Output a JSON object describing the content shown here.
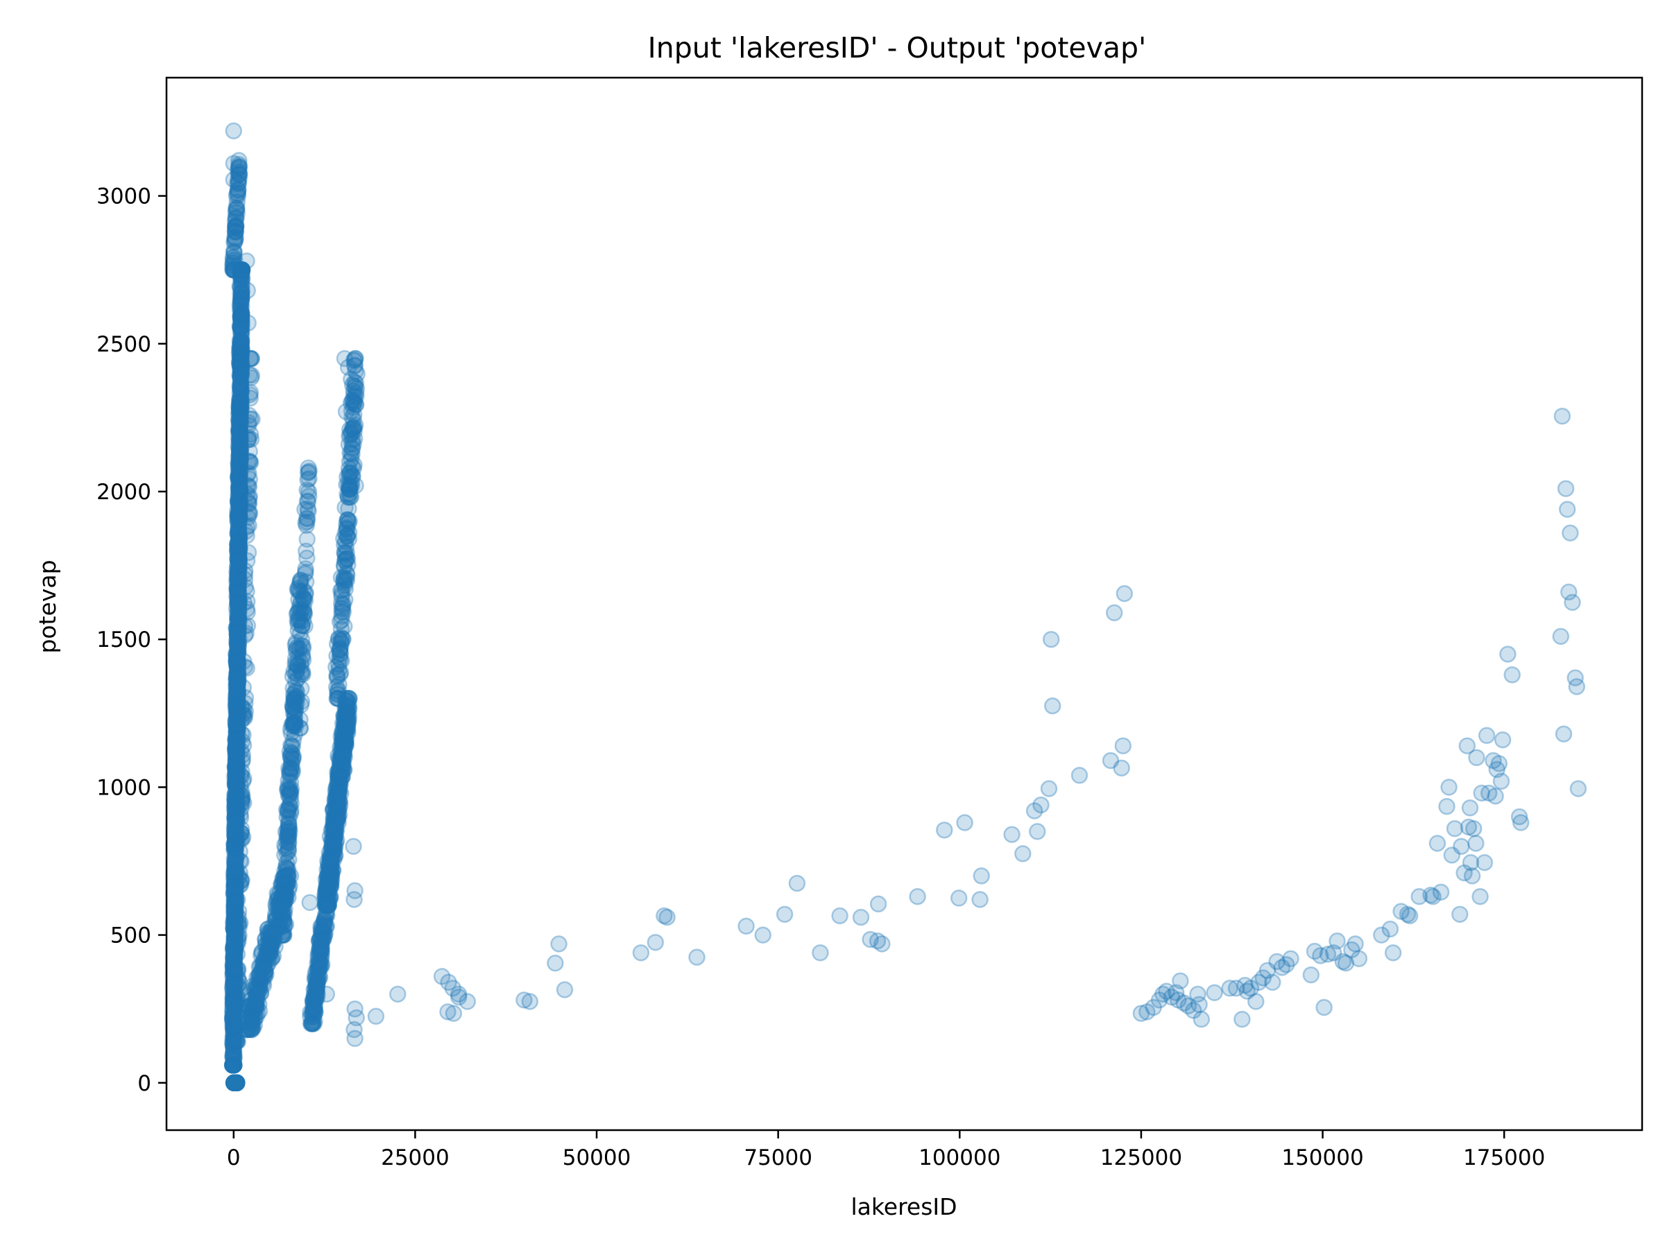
{
  "chart_data": {
    "type": "scatter",
    "title": "Input 'lakeresID' - Output 'potevap'",
    "xlabel": "lakeresID",
    "ylabel": "potevap",
    "xlim": [
      -9250,
      194000
    ],
    "ylim": [
      -160,
      3400
    ],
    "xticks": [
      0,
      25000,
      50000,
      75000,
      100000,
      125000,
      150000,
      175000
    ],
    "yticks": [
      0,
      500,
      1000,
      1500,
      2000,
      2500,
      3000
    ],
    "grid": false,
    "legend": "none",
    "marker_color": "#1f77b4",
    "marker_alpha": 0.22,
    "series": [
      {
        "clusters": [
          {
            "x": [
              0,
              500
            ],
            "y": [
              0,
              0
            ],
            "n": 24,
            "alpha": 0.9
          },
          {
            "x": [
              -200,
              1200
            ],
            "y": [
              60,
              2750
            ],
            "n": 1400
          },
          {
            "x": [
              -150,
              900
            ],
            "y": [
              2750,
              3120
            ],
            "n": 70
          },
          {
            "x": [
              200,
              2600
            ],
            "y": [
              140,
              2450
            ],
            "n": 160
          },
          {
            "x": [
              1500,
              8000
            ],
            "y": [
              180,
              700
            ],
            "n": 260
          },
          {
            "x": [
              6500,
              9500
            ],
            "y": [
              500,
              1700
            ],
            "n": 220
          },
          {
            "x": [
              9000,
              10500
            ],
            "y": [
              1200,
              2080
            ],
            "n": 60
          },
          {
            "x": [
              10500,
              13500
            ],
            "y": [
              200,
              700
            ],
            "n": 180
          },
          {
            "x": [
              12500,
              16000
            ],
            "y": [
              600,
              1300
            ],
            "n": 420
          },
          {
            "x": [
              14000,
              17200
            ],
            "y": [
              1300,
              2450
            ],
            "n": 180
          }
        ],
        "points": [
          [
            0,
            3220
          ],
          [
            0,
            3055
          ],
          [
            0,
            3110
          ],
          [
            1800,
            2780
          ],
          [
            1900,
            2680
          ],
          [
            2000,
            2570
          ],
          [
            10300,
            2065
          ],
          [
            10200,
            2040
          ],
          [
            9800,
            1940
          ],
          [
            15300,
            2450
          ],
          [
            15800,
            2420
          ],
          [
            16200,
            2380
          ],
          [
            15500,
            2270
          ],
          [
            16000,
            2210
          ],
          [
            16500,
            2160
          ],
          [
            16600,
            2090
          ],
          [
            16400,
            2050
          ],
          [
            16800,
            2020
          ],
          [
            10500,
            610
          ],
          [
            11300,
            310
          ],
          [
            12800,
            300
          ],
          [
            16500,
            800
          ],
          [
            16700,
            650
          ],
          [
            16600,
            620
          ],
          [
            16700,
            250
          ],
          [
            16900,
            220
          ],
          [
            16600,
            180
          ],
          [
            16700,
            150
          ],
          [
            19600,
            225
          ],
          [
            22600,
            300
          ],
          [
            28700,
            360
          ],
          [
            29600,
            340
          ],
          [
            30200,
            320
          ],
          [
            31000,
            300
          ],
          [
            29500,
            240
          ],
          [
            30300,
            235
          ],
          [
            31000,
            290
          ],
          [
            32200,
            275
          ],
          [
            40000,
            280
          ],
          [
            40800,
            275
          ],
          [
            44300,
            405
          ],
          [
            44800,
            470
          ],
          [
            45600,
            315
          ],
          [
            56100,
            440
          ],
          [
            58100,
            475
          ],
          [
            59300,
            565
          ],
          [
            59700,
            560
          ],
          [
            63800,
            425
          ],
          [
            70600,
            530
          ],
          [
            72900,
            500
          ],
          [
            75900,
            570
          ],
          [
            77600,
            675
          ],
          [
            80800,
            440
          ],
          [
            83500,
            565
          ],
          [
            86400,
            560
          ],
          [
            87700,
            485
          ],
          [
            88700,
            480
          ],
          [
            88800,
            605
          ],
          [
            89300,
            470
          ],
          [
            94200,
            630
          ],
          [
            97900,
            855
          ],
          [
            99900,
            625
          ],
          [
            100700,
            880
          ],
          [
            102800,
            620
          ],
          [
            103000,
            700
          ],
          [
            107200,
            840
          ],
          [
            108700,
            775
          ],
          [
            110300,
            920
          ],
          [
            110700,
            850
          ],
          [
            111200,
            940
          ],
          [
            112300,
            995
          ],
          [
            112600,
            1500
          ],
          [
            112800,
            1275
          ],
          [
            116500,
            1040
          ],
          [
            120800,
            1090
          ],
          [
            121300,
            1590
          ],
          [
            122300,
            1065
          ],
          [
            122500,
            1140
          ],
          [
            122700,
            1655
          ],
          [
            125000,
            235
          ],
          [
            125800,
            240
          ],
          [
            126700,
            255
          ],
          [
            127500,
            280
          ],
          [
            128000,
            300
          ],
          [
            128500,
            310
          ],
          [
            129200,
            290
          ],
          [
            129800,
            305
          ],
          [
            130100,
            280
          ],
          [
            130400,
            345
          ],
          [
            130900,
            270
          ],
          [
            131500,
            260
          ],
          [
            132200,
            245
          ],
          [
            132800,
            300
          ],
          [
            133000,
            265
          ],
          [
            133300,
            215
          ],
          [
            135100,
            305
          ],
          [
            137200,
            320
          ],
          [
            138100,
            320
          ],
          [
            138900,
            215
          ],
          [
            139300,
            330
          ],
          [
            139600,
            310
          ],
          [
            140100,
            320
          ],
          [
            140800,
            275
          ],
          [
            141200,
            340
          ],
          [
            141800,
            355
          ],
          [
            142400,
            380
          ],
          [
            143100,
            340
          ],
          [
            143700,
            410
          ],
          [
            144400,
            390
          ],
          [
            145000,
            400
          ],
          [
            145600,
            420
          ],
          [
            148400,
            365
          ],
          [
            148900,
            445
          ],
          [
            149700,
            430
          ],
          [
            150200,
            255
          ],
          [
            150700,
            435
          ],
          [
            151500,
            440
          ],
          [
            152000,
            480
          ],
          [
            152800,
            410
          ],
          [
            153200,
            405
          ],
          [
            154000,
            450
          ],
          [
            154500,
            470
          ],
          [
            155000,
            420
          ],
          [
            158100,
            500
          ],
          [
            159300,
            520
          ],
          [
            159700,
            440
          ],
          [
            160800,
            580
          ],
          [
            161700,
            570
          ],
          [
            162000,
            565
          ],
          [
            163300,
            630
          ],
          [
            164900,
            635
          ],
          [
            165200,
            630
          ],
          [
            165800,
            810
          ],
          [
            166300,
            645
          ],
          [
            167100,
            935
          ],
          [
            167400,
            1000
          ],
          [
            167800,
            770
          ],
          [
            168200,
            860
          ],
          [
            168900,
            570
          ],
          [
            169100,
            800
          ],
          [
            169500,
            710
          ],
          [
            169900,
            1140
          ],
          [
            170100,
            865
          ],
          [
            170300,
            930
          ],
          [
            170400,
            745
          ],
          [
            170600,
            700
          ],
          [
            170800,
            860
          ],
          [
            171100,
            810
          ],
          [
            171200,
            1100
          ],
          [
            171700,
            630
          ],
          [
            171900,
            980
          ],
          [
            172300,
            745
          ],
          [
            172600,
            1175
          ],
          [
            172900,
            980
          ],
          [
            173500,
            1090
          ],
          [
            173800,
            970
          ],
          [
            174000,
            1060
          ],
          [
            174300,
            1080
          ],
          [
            174600,
            1020
          ],
          [
            174800,
            1160
          ],
          [
            175500,
            1450
          ],
          [
            176100,
            1380
          ],
          [
            177100,
            900
          ],
          [
            177300,
            880
          ],
          [
            182800,
            1510
          ],
          [
            183000,
            2255
          ],
          [
            183200,
            1180
          ],
          [
            183500,
            2010
          ],
          [
            183700,
            1940
          ],
          [
            183900,
            1660
          ],
          [
            184100,
            1860
          ],
          [
            184400,
            1625
          ],
          [
            184800,
            1370
          ],
          [
            185000,
            1340
          ],
          [
            185200,
            995
          ]
        ]
      }
    ]
  }
}
